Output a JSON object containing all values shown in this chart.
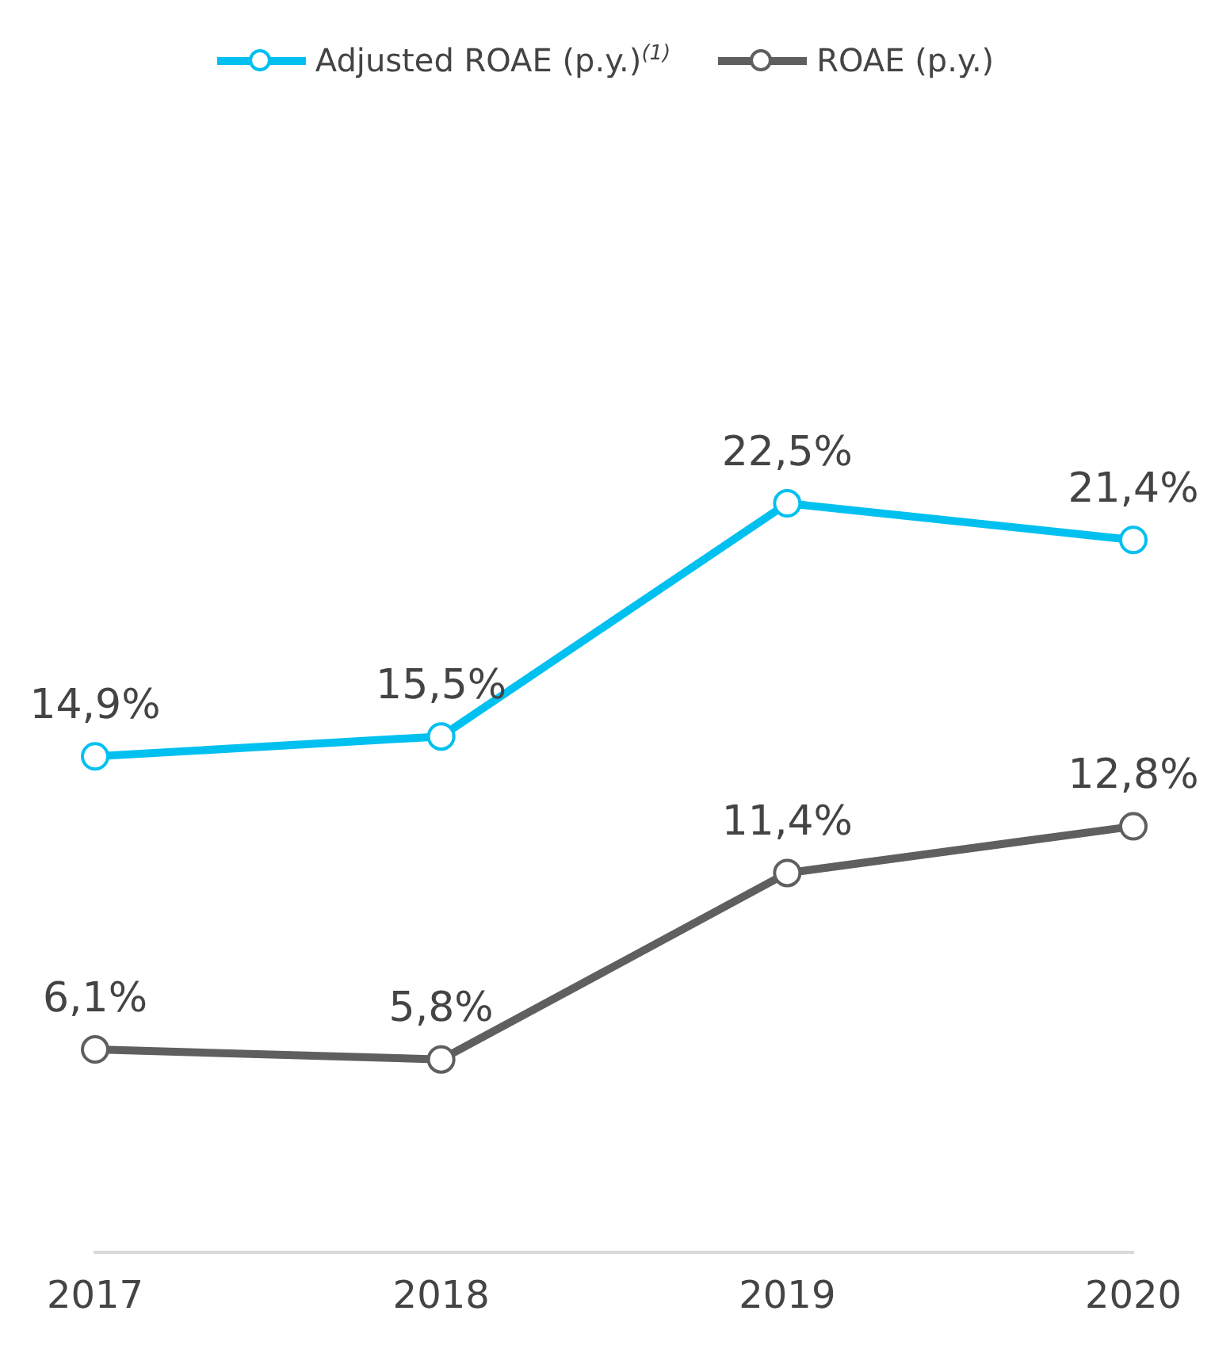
{
  "chart_data": {
    "type": "line",
    "categories": [
      "2017",
      "2018",
      "2019",
      "2020"
    ],
    "series": [
      {
        "name": "Adjusted ROAE (p.y.)$^{(1)}$",
        "color": "#00c0f0",
        "values": [
          14.9,
          15.5,
          22.5,
          21.4
        ],
        "value_labels": [
          "14,9%",
          "15,5%",
          "22,5%",
          "21,4%"
        ]
      },
      {
        "name": "ROAE (p.y.)",
        "color": "#5f5f5f",
        "values": [
          6.1,
          5.8,
          11.4,
          12.8
        ],
        "value_labels": [
          "6,1%",
          "5,8%",
          "11,4%",
          "12,8%"
        ]
      }
    ],
    "legend": "top",
    "marker": "circle",
    "line_style": "solid",
    "grid": false
  }
}
